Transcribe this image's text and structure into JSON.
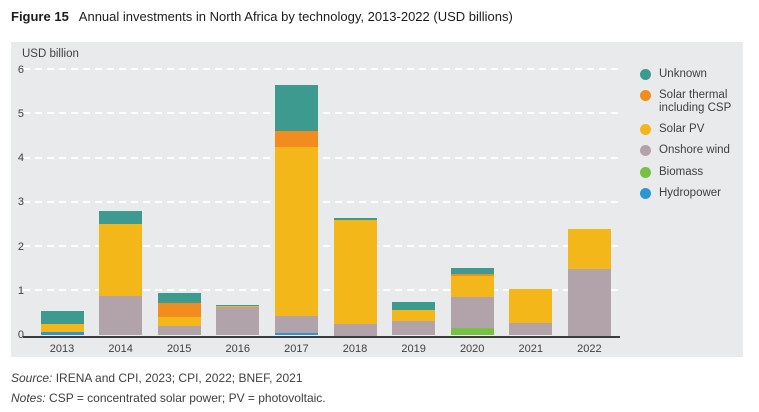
{
  "figure": {
    "label": "Figure 15",
    "title": "Annual investments in North Africa by technology, 2013-2022 (USD billions)"
  },
  "chart_data": {
    "type": "bar",
    "stacked": true,
    "unit_label": "USD billion",
    "categories": [
      "2013",
      "2014",
      "2015",
      "2016",
      "2017",
      "2018",
      "2019",
      "2020",
      "2021",
      "2022"
    ],
    "series": [
      {
        "name": "Hydropower",
        "color": "#2d96d2",
        "values": [
          0.07,
          0,
          0,
          0,
          0.05,
          0,
          0,
          0,
          0,
          0
        ]
      },
      {
        "name": "Biomass",
        "color": "#76c043",
        "values": [
          0,
          0,
          0,
          0.01,
          0,
          0,
          0,
          0.16,
          0,
          0
        ]
      },
      {
        "name": "Onshore wind",
        "color": "#b2a3ab",
        "values": [
          0,
          0.89,
          0.21,
          0.64,
          0.4,
          0.25,
          0.32,
          0.7,
          0.28,
          1.5
        ]
      },
      {
        "name": "Solar PV",
        "color": "#f4b71a",
        "values": [
          0.19,
          1.64,
          0.2,
          0.02,
          3.81,
          2.35,
          0.26,
          0.48,
          0.77,
          0.9
        ]
      },
      {
        "name": "Solar thermal including CSP",
        "color": "#f28c1e",
        "values": [
          0,
          0,
          0.32,
          0,
          0.36,
          0.02,
          0,
          0.06,
          0,
          0
        ]
      },
      {
        "name": "Unknown",
        "color": "#3d9a8f",
        "values": [
          0.29,
          0.29,
          0.22,
          0.03,
          1.03,
          0.03,
          0.18,
          0.13,
          0,
          0
        ]
      }
    ],
    "totals": [
      0.55,
      2.82,
      0.95,
      0.7,
      5.65,
      2.65,
      0.76,
      1.53,
      1.05,
      2.4
    ],
    "legend_order_top_to_bottom": [
      "Unknown",
      "Solar thermal including CSP",
      "Solar PV",
      "Onshore wind",
      "Biomass",
      "Hydropower"
    ],
    "legend_position": "right",
    "ylim": [
      0,
      6
    ],
    "yticks": [
      0,
      1,
      2,
      3,
      4,
      5,
      6
    ],
    "grid": "dashed-white-horizontal",
    "panel_background": "#e9eaec",
    "axis_color": "#3c3c3c"
  },
  "footer": {
    "source_label": "Source:",
    "source_text": " IRENA and CPI, 2023; CPI, 2022; BNEF, 2021",
    "notes_label": "Notes:",
    "notes_text": " CSP = concentrated solar power; PV = photovoltaic."
  }
}
